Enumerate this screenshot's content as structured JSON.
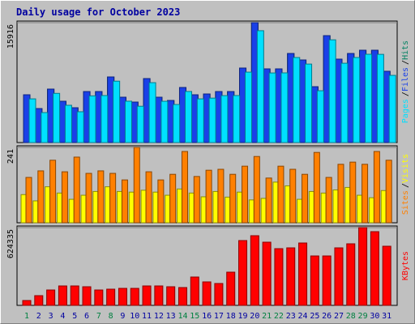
{
  "chart_data": [
    {
      "type": "bar",
      "title": "Daily usage for October 2023",
      "ylim": [
        0,
        15916
      ],
      "yticks": [
        15916
      ],
      "legend_separator": "/",
      "series": [
        {
          "name": "Pages",
          "color": "#00e0ff",
          "values": [
            5800,
            3980,
            6530,
            4950,
            4090,
            6200,
            6240,
            8150,
            5490,
            4820,
            7950,
            5480,
            5050,
            6780,
            5800,
            5900,
            6230,
            6240,
            9350,
            14850,
            9240,
            9250,
            11290,
            10420,
            6880,
            13640,
            10530,
            11290,
            11720,
            11710,
            8920
          ]
        },
        {
          "name": "Files",
          "color": "#1a40e8",
          "values": [
            6345,
            4517,
            7098,
            5485,
            4624,
            6775,
            6775,
            8711,
            6022,
            5377,
            8496,
            6022,
            5592,
            7313,
            6345,
            6452,
            6775,
            6775,
            9894,
            15916,
            9786,
            9786,
            11829,
            10969,
            7420,
            14195,
            11077,
            11829,
            12260,
            12260,
            9464
          ]
        },
        {
          "name": "Hits",
          "color": "#008060",
          "values": [
            6345,
            4517,
            7098,
            5485,
            4624,
            6775,
            6775,
            8711,
            6022,
            5377,
            8496,
            6022,
            5592,
            7313,
            6345,
            6452,
            6775,
            6775,
            9894,
            15916,
            9786,
            9786,
            11829,
            10969,
            7420,
            14195,
            11077,
            11829,
            12260,
            12260,
            9464
          ]
        }
      ]
    },
    {
      "type": "bar",
      "ylim": [
        0,
        241
      ],
      "yticks": [
        241
      ],
      "legend_separator": "/",
      "series": [
        {
          "name": "Sites",
          "color": "#ff8000",
          "values": [
            145,
            166,
            200,
            163,
            210,
            158,
            166,
            158,
            137,
            241,
            163,
            137,
            155,
            228,
            148,
            168,
            171,
            155,
            181,
            212,
            143,
            181,
            171,
            155,
            225,
            145,
            187,
            194,
            187,
            228,
            200
          ]
        },
        {
          "name": "Visits",
          "color": "#ffff00",
          "values": [
            90,
            70,
            115,
            95,
            75,
            88,
            100,
            115,
            100,
            98,
            104,
            98,
            88,
            108,
            95,
            83,
            100,
            82,
            98,
            73,
            78,
            130,
            118,
            75,
            100,
            95,
            105,
            113,
            88,
            80,
            103
          ]
        }
      ]
    },
    {
      "type": "bar",
      "ylim": [
        0,
        624335
      ],
      "yticks": [
        624335
      ],
      "categories": [
        "1",
        "2",
        "3",
        "4",
        "5",
        "6",
        "7",
        "8",
        "9",
        "10",
        "11",
        "12",
        "13",
        "14",
        "15",
        "16",
        "17",
        "18",
        "19",
        "20",
        "21",
        "22",
        "23",
        "24",
        "25",
        "26",
        "27",
        "28",
        "29",
        "30",
        "31"
      ],
      "category_colors": [
        "#008040",
        "#0000a0",
        "#0000a0",
        "#0000a0",
        "#0000a0",
        "#0000a0",
        "#008040",
        "#008040",
        "#0000a0",
        "#0000a0",
        "#0000a0",
        "#0000a0",
        "#0000a0",
        "#008040",
        "#008040",
        "#0000a0",
        "#0000a0",
        "#0000a0",
        "#0000a0",
        "#0000a0",
        "#008040",
        "#008040",
        "#0000a0",
        "#0000a0",
        "#0000a0",
        "#0000a0",
        "#0000a0",
        "#008040",
        "#008040",
        "#0000a0",
        "#0000a0"
      ],
      "series": [
        {
          "name": "KBytes",
          "color": "#ff0000",
          "values": [
            39024,
            78048,
            123576,
            156096,
            156096,
            149592,
            123576,
            130080,
            136584,
            136584,
            156096,
            156096,
            149592,
            143088,
            227640,
            188616,
            175608,
            266664,
            520320,
            559344,
            507312,
            455280,
            461784,
            500808,
            396744,
            396744,
            461784,
            494304,
            624335,
            591864,
            474792
          ]
        }
      ]
    }
  ]
}
